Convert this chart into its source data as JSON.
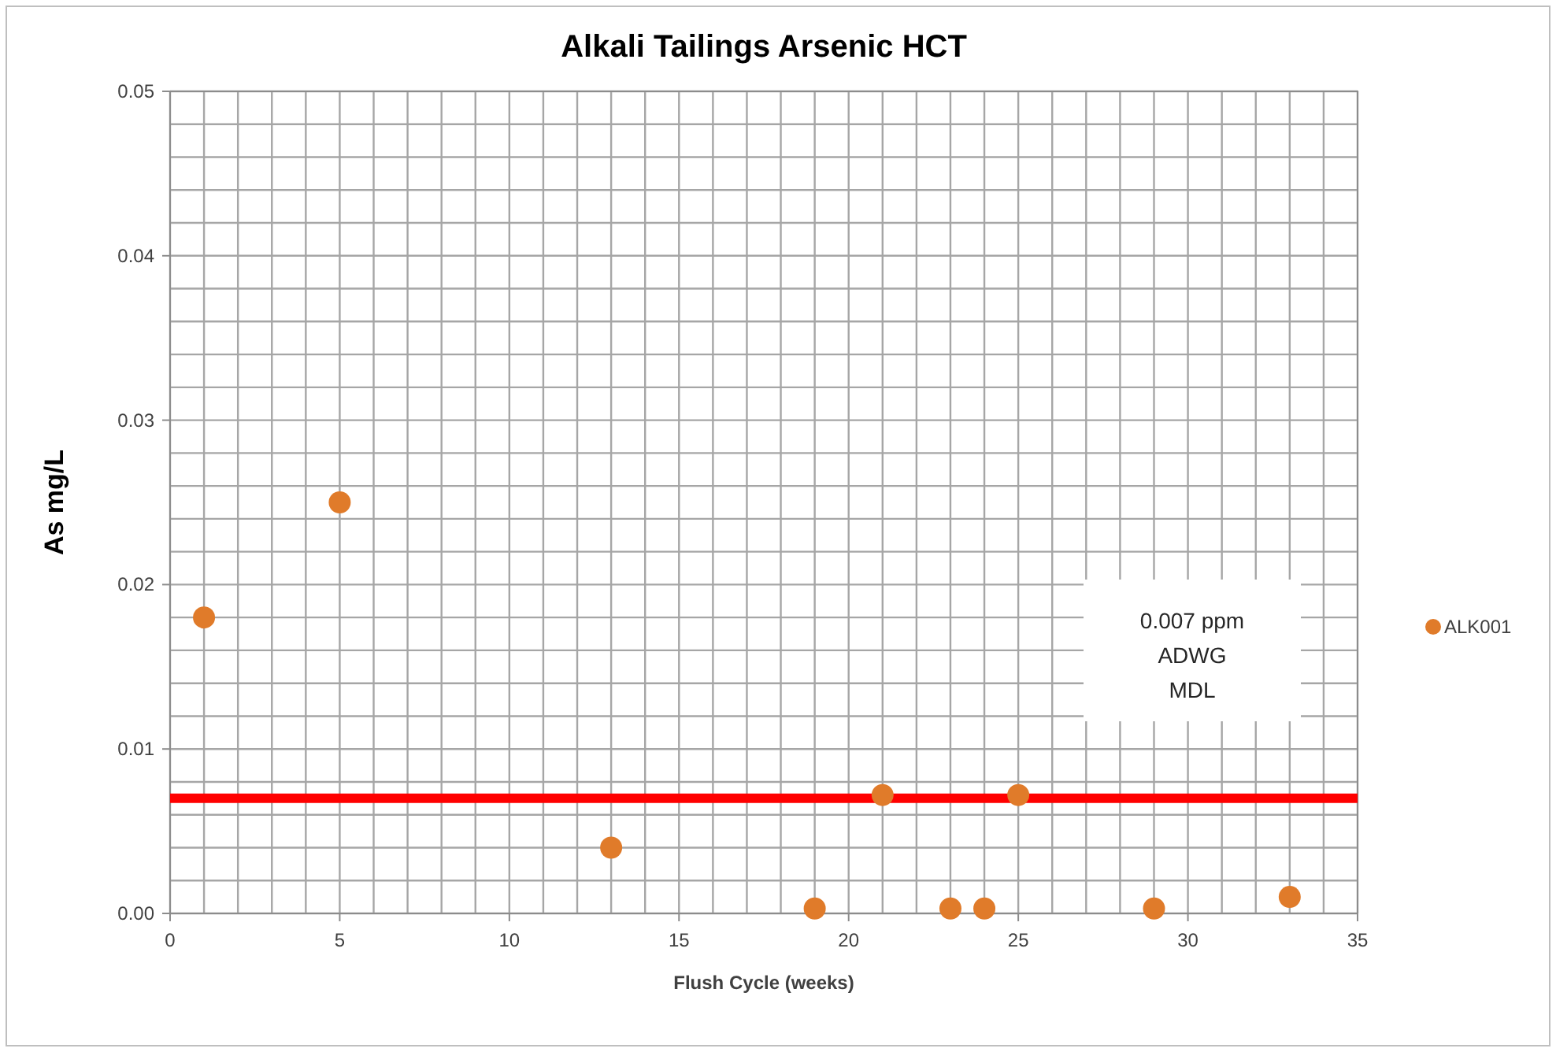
{
  "chart_data": {
    "type": "scatter",
    "title": "Alkali Tailings Arsenic HCT",
    "xlabel": "Flush Cycle (weeks)",
    "ylabel": "As mg/L",
    "x": [
      1,
      5,
      13,
      19,
      21,
      23,
      24,
      25,
      29,
      33
    ],
    "series": [
      {
        "name": "ALK001",
        "color": "#e07b2a",
        "values": [
          0.018,
          0.025,
          0.004,
          0.0003,
          0.0072,
          0.0003,
          0.0003,
          0.0072,
          0.0003,
          0.001
        ]
      }
    ],
    "xlim": [
      0,
      35
    ],
    "xticks": [
      0,
      5,
      10,
      15,
      20,
      25,
      30,
      35
    ],
    "ylim": [
      0,
      0.05
    ],
    "yticks": [
      {
        "value": 0,
        "label": "0.00"
      },
      {
        "value": 0.01,
        "label": "0.01"
      },
      {
        "value": 0.02,
        "label": "0.02"
      },
      {
        "value": 0.03,
        "label": "0.03"
      },
      {
        "value": 0.04,
        "label": "0.04"
      },
      {
        "value": 0.05,
        "label": "0.05"
      }
    ],
    "ref_lines": [
      {
        "axis": "y",
        "value": 0.007,
        "color": "#ff0000"
      }
    ],
    "annotations": [
      "0.007 ppm\nADWG\nMDL"
    ],
    "grid": true,
    "legend": "right",
    "marker": "circle"
  }
}
